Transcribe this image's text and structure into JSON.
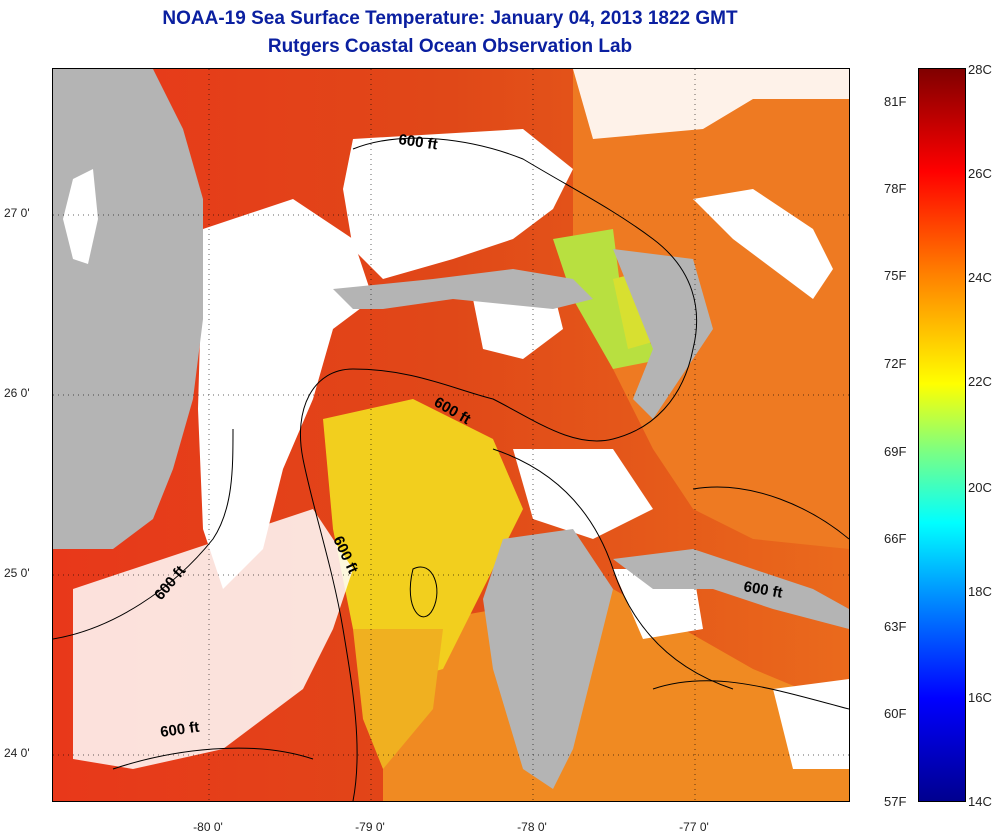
{
  "title": {
    "line1": "NOAA-19 Sea Surface Temperature:  January 04, 2013 1822 GMT",
    "line2": "Rutgers Coastal Ocean Observation Lab"
  },
  "map": {
    "lat_labels": [
      "27 0'",
      "26 0'",
      "25 0'",
      "24 0'"
    ],
    "lon_labels": [
      "-80 0'",
      "-79 0'",
      "-78 0'",
      "-77 0'"
    ],
    "contour_labels": [
      "600 ft",
      "600 ft",
      "600 ft",
      "600 ft",
      "600 ft",
      "600 ft"
    ],
    "colors": {
      "land": "#b4b4b4",
      "cloud": "#ffffff",
      "warm_water": "#e8401a",
      "mid_water": "#f08020",
      "cool_water": "#f0d020",
      "green_water": "#a0e040"
    }
  },
  "colorbar": {
    "fahrenheit": [
      "81F",
      "78F",
      "75F",
      "72F",
      "69F",
      "66F",
      "63F",
      "60F",
      "57F"
    ],
    "celsius": [
      "28C",
      "26C",
      "24C",
      "22C",
      "20C",
      "18C",
      "16C",
      "14C"
    ]
  }
}
